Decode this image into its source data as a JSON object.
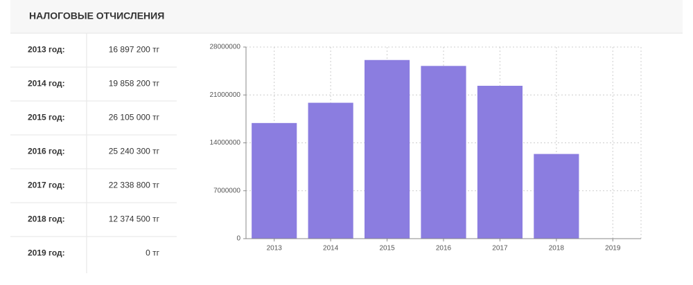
{
  "header": {
    "title": "НАЛОГОВЫЕ ОТЧИСЛЕНИЯ"
  },
  "table": {
    "rows": [
      [
        "2013 год:",
        "16 897 200 тг"
      ],
      [
        "2014 год:",
        "19 858 200 тг"
      ],
      [
        "2015 год:",
        "26 105 000 тг"
      ],
      [
        "2016 год:",
        "25 240 300 тг"
      ],
      [
        "2017 год:",
        "22 338 800 тг"
      ],
      [
        "2018 год:",
        "12 374 500 тг"
      ],
      [
        "2019 год:",
        "0 тг"
      ]
    ]
  },
  "chart_data": {
    "type": "bar",
    "categories": [
      "2013",
      "2014",
      "2015",
      "2016",
      "2017",
      "2018",
      "2019"
    ],
    "values": [
      16897200,
      19858200,
      26105000,
      25240300,
      22338800,
      12374500,
      0
    ],
    "color": "#8b7de0",
    "ylim": [
      0,
      28000000
    ],
    "yticks": [
      0,
      7000000,
      14000000,
      21000000,
      28000000
    ],
    "grid": true
  }
}
